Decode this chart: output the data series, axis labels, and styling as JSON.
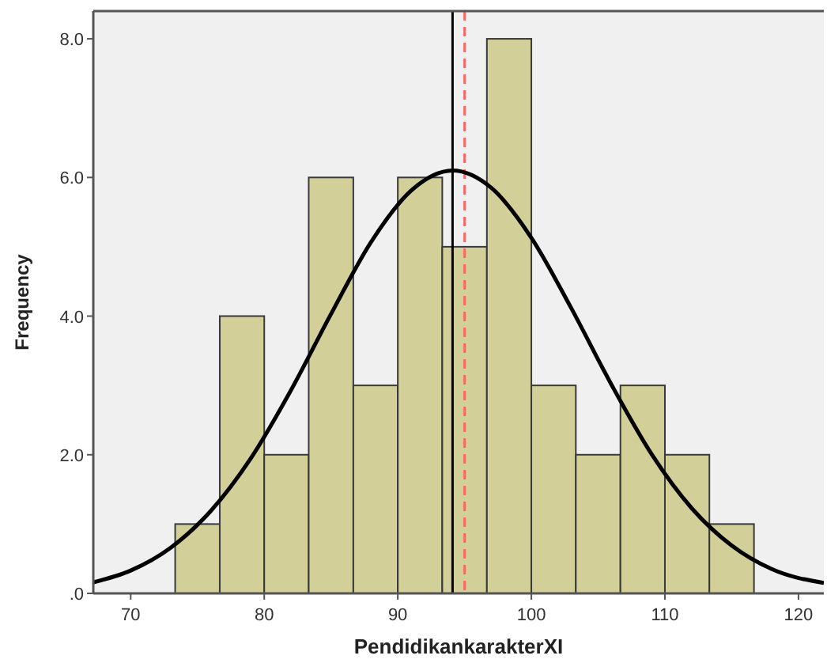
{
  "chart_data": {
    "type": "histogram",
    "xlabel": "PendidikankarakterXI",
    "ylabel": "Frequency",
    "bins": [
      73.33,
      76.67,
      80,
      83.33,
      86.67,
      90,
      93.33,
      96.67,
      100,
      103.33,
      106.67,
      110,
      113.33,
      116.67
    ],
    "series": [
      {
        "color": "#d3cf98",
        "values": [
          1,
          4,
          2,
          6,
          3,
          6,
          5,
          8,
          3,
          2,
          3,
          2,
          1
        ]
      },
      {
        "type": "line",
        "color": "#000000",
        "x": [
          67.2,
          70,
          73,
          76,
          79,
          82,
          85,
          88,
          91,
          94.1,
          97,
          100,
          103,
          106,
          109,
          112,
          115,
          118,
          121.9
        ],
        "values": [
          0.16,
          0.33,
          0.66,
          1.19,
          1.95,
          2.93,
          4.03,
          5.07,
          5.81,
          6.1,
          5.85,
          5.13,
          4.11,
          3.01,
          2.01,
          1.23,
          0.69,
          0.35,
          0.15
        ]
      }
    ],
    "xlim": [
      67.2,
      121.9
    ],
    "ylim": [
      0,
      8.4
    ],
    "xticks": [
      70,
      80,
      90,
      100,
      110,
      120
    ],
    "yticks": [
      {
        "value": 0,
        "label": ".0"
      },
      {
        "value": 2,
        "label": "2.0"
      },
      {
        "value": 4,
        "label": "4.0"
      },
      {
        "value": 6,
        "label": "6.0"
      },
      {
        "value": 8,
        "label": "8.0"
      }
    ],
    "ref_lines": [
      {
        "axis": "x",
        "value": 94.1,
        "color": "#000000",
        "line_style": "solid"
      },
      {
        "axis": "x",
        "value": 95,
        "color": "#ff6666",
        "line_style": "dashed"
      }
    ],
    "grid": false
  }
}
